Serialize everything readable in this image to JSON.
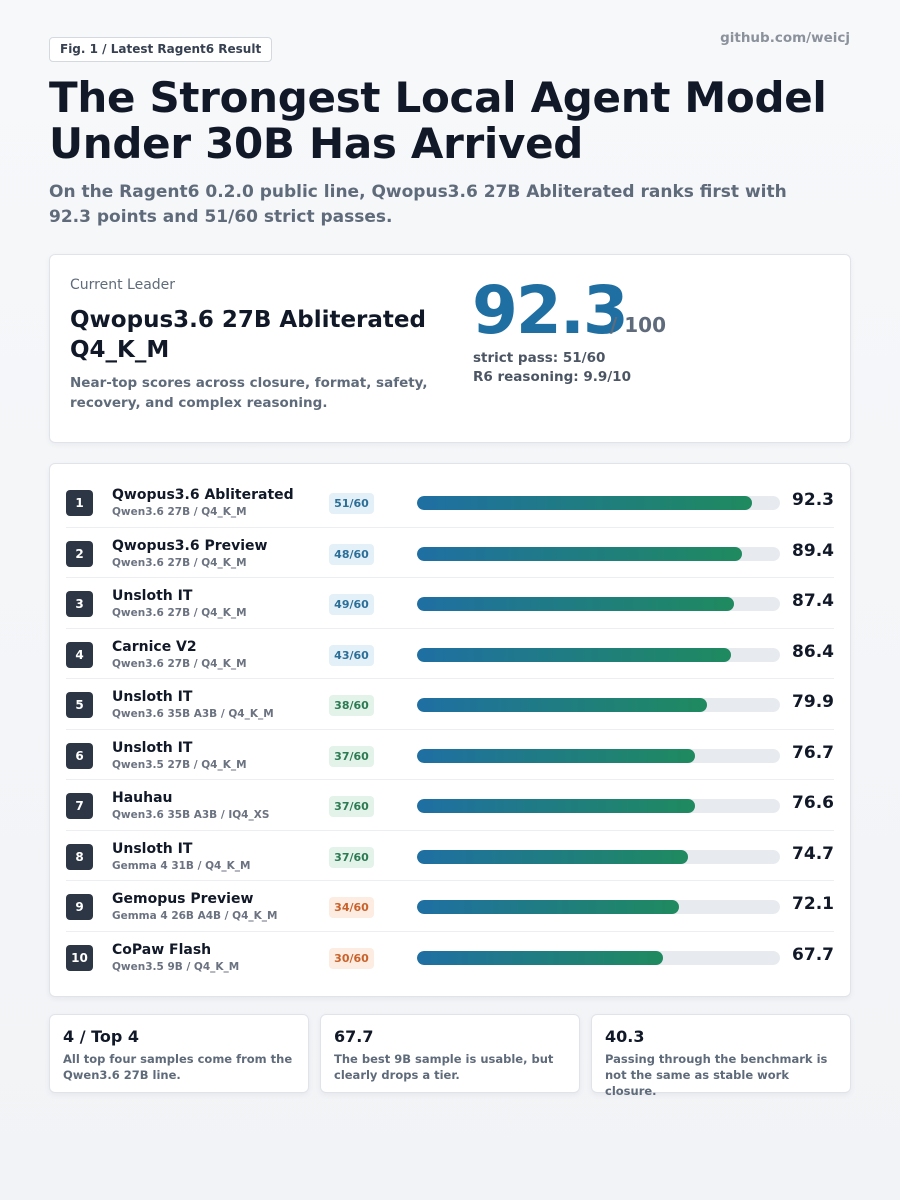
{
  "header": {
    "fig_tag": "Fig. 1 / Latest Ragent6 Result",
    "source": "github.com/weicj",
    "title": "The Strongest Local Agent Model Under 30B Has Arrived",
    "subtitle": "On the Ragent6 0.2.0 public line, Qwopus3.6 27B Abliterated ranks first with 92.3 points and 51/60 strict passes."
  },
  "leader": {
    "label": "Current Leader",
    "name": "Qwopus3.6 27B Abliterated Q4_K_M",
    "description": "Near-top scores across closure, format, safety, recovery, and complex reasoning.",
    "score": "92.3",
    "score_max": "/ 100",
    "strict_pass": "strict pass: 51/60",
    "r6_reasoning": "R6 reasoning: 9.9/10"
  },
  "colors": {
    "accent": "#1f6fa3",
    "bar_start": "#1f6fa3",
    "bar_end": "#1f8a5f",
    "badge_blue_bg": "#e4f0f8",
    "badge_blue_fg": "#2b6f98",
    "badge_green_bg": "#e3f3ea",
    "badge_green_fg": "#2c7a52",
    "badge_orange_bg": "#fdece2",
    "badge_orange_fg": "#c9622a"
  },
  "chart_data": {
    "type": "bar",
    "orientation": "horizontal",
    "xlim": [
      0,
      100
    ],
    "grid": false,
    "categories": [
      "Qwopus3.6 Abliterated",
      "Qwopus3.6 Preview",
      "Unsloth IT",
      "Carnice V2",
      "Unsloth IT",
      "Unsloth IT",
      "Hauhau",
      "Unsloth IT",
      "Gemopus Preview",
      "CoPaw Flash"
    ],
    "values": [
      92.3,
      89.4,
      87.4,
      86.4,
      79.9,
      76.7,
      76.6,
      74.7,
      72.1,
      67.7
    ],
    "rows": [
      {
        "rank": "1",
        "name": "Qwopus3.6 Abliterated",
        "sub": "Qwen3.6 27B / Q4_K_M",
        "pass": "51/60",
        "tone": "blue",
        "score": 92.3
      },
      {
        "rank": "2",
        "name": "Qwopus3.6 Preview",
        "sub": "Qwen3.6 27B / Q4_K_M",
        "pass": "48/60",
        "tone": "blue",
        "score": 89.4
      },
      {
        "rank": "3",
        "name": "Unsloth IT",
        "sub": "Qwen3.6 27B / Q4_K_M",
        "pass": "49/60",
        "tone": "blue",
        "score": 87.4
      },
      {
        "rank": "4",
        "name": "Carnice V2",
        "sub": "Qwen3.6 27B / Q4_K_M",
        "pass": "43/60",
        "tone": "blue",
        "score": 86.4
      },
      {
        "rank": "5",
        "name": "Unsloth IT",
        "sub": "Qwen3.6 35B A3B / Q4_K_M",
        "pass": "38/60",
        "tone": "green",
        "score": 79.9
      },
      {
        "rank": "6",
        "name": "Unsloth IT",
        "sub": "Qwen3.5 27B / Q4_K_M",
        "pass": "37/60",
        "tone": "green",
        "score": 76.7
      },
      {
        "rank": "7",
        "name": "Hauhau",
        "sub": "Qwen3.6 35B A3B / IQ4_XS",
        "pass": "37/60",
        "tone": "green",
        "score": 76.6
      },
      {
        "rank": "8",
        "name": "Unsloth IT",
        "sub": "Gemma 4 31B / Q4_K_M",
        "pass": "37/60",
        "tone": "green",
        "score": 74.7
      },
      {
        "rank": "9",
        "name": "Gemopus Preview",
        "sub": "Gemma 4 26B A4B / Q4_K_M",
        "pass": "34/60",
        "tone": "orange",
        "score": 72.1
      },
      {
        "rank": "10",
        "name": "CoPaw Flash",
        "sub": "Qwen3.5 9B / Q4_K_M",
        "pass": "30/60",
        "tone": "orange",
        "score": 67.7
      }
    ]
  },
  "notes": [
    {
      "head": "4 / Top 4",
      "text": "All top four samples come from the Qwen3.6 27B line."
    },
    {
      "head": "67.7",
      "text": "The best 9B sample is usable, but clearly drops a tier."
    },
    {
      "head": "40.3",
      "text": "Passing through the benchmark is not the same as stable work closure."
    }
  ]
}
